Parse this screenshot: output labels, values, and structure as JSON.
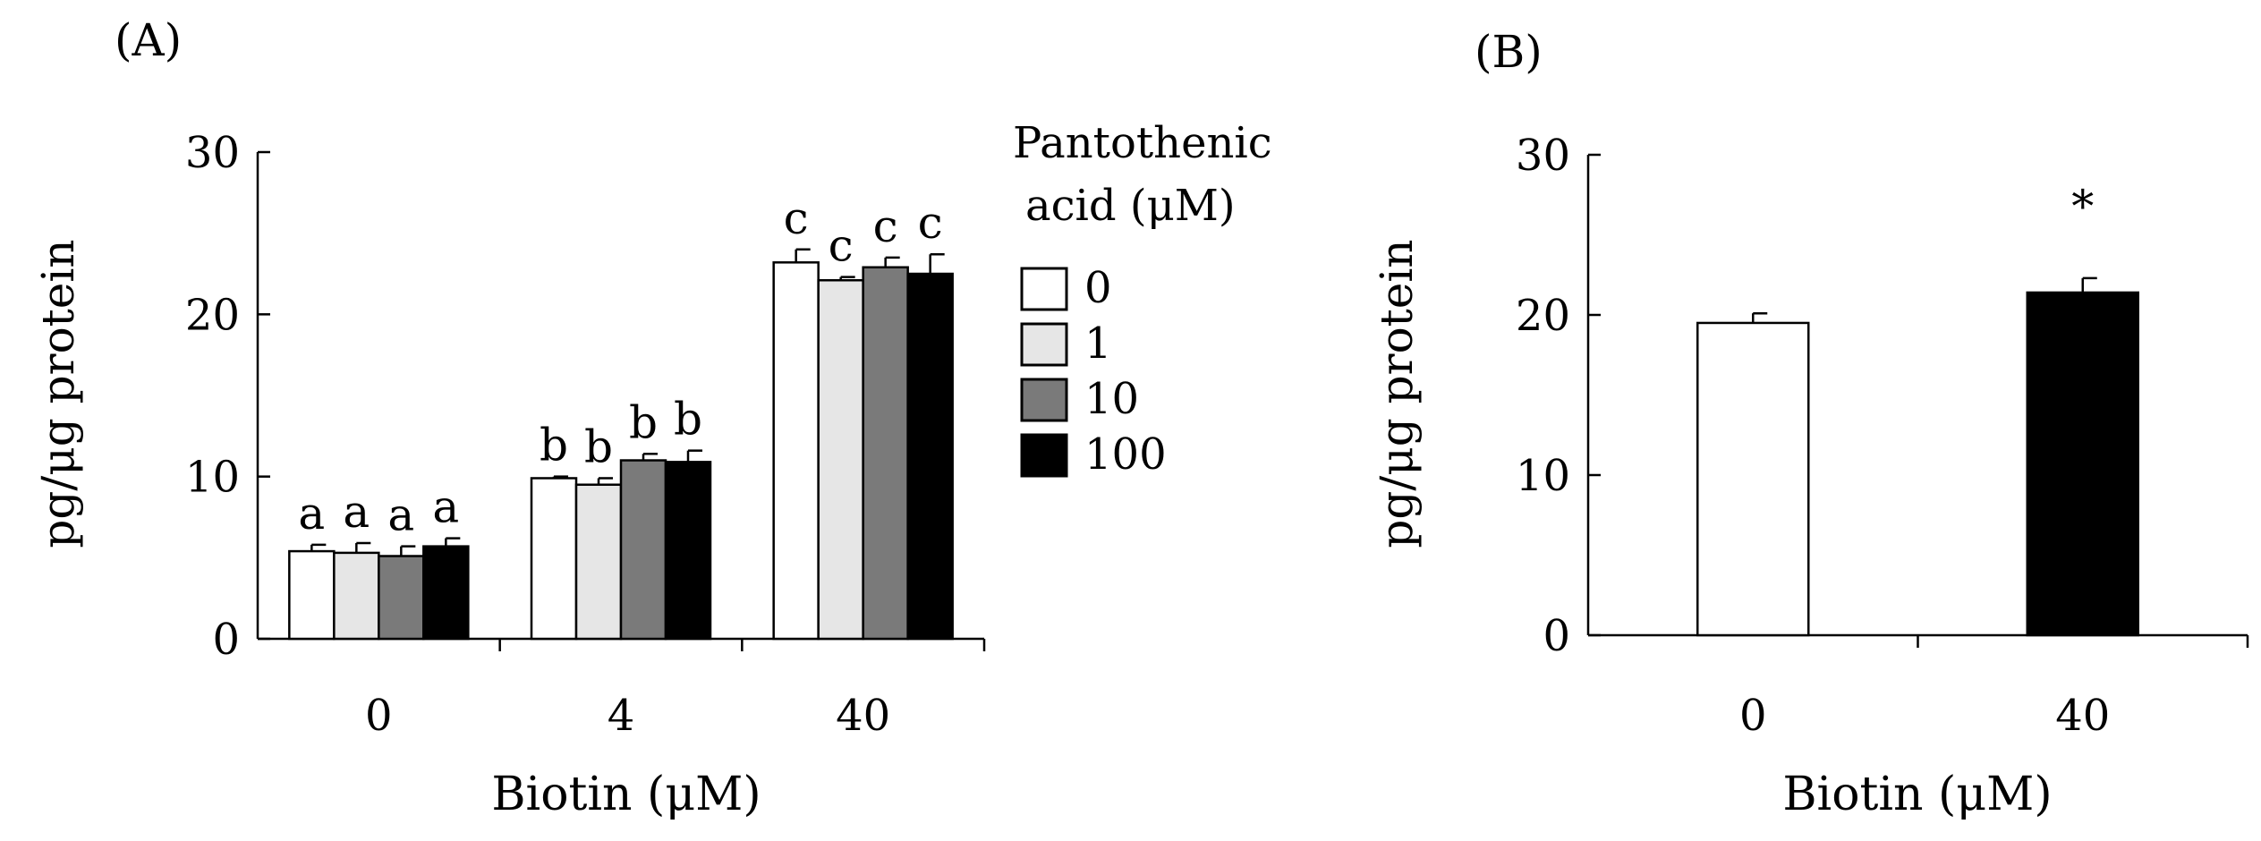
{
  "chart_data": [
    {
      "panel_label": "(A)",
      "type": "bar",
      "categories": [
        "0",
        "4",
        "40"
      ],
      "xlabel": "Biotin (μM)",
      "ylabel": "pg/μg protein",
      "ylim": [
        0,
        30
      ],
      "yticks": [
        "0",
        "10",
        "20",
        "30"
      ],
      "grid": false,
      "legend_title": [
        "Pantothenic",
        "acid (μM)"
      ],
      "legend_position": "right",
      "series": [
        {
          "name": "0",
          "color": "#ffffff",
          "values": [
            5.4,
            9.9,
            23.2
          ],
          "errors": [
            0.4,
            0.1,
            0.8
          ],
          "letters": [
            "a",
            "b",
            "c"
          ]
        },
        {
          "name": "1",
          "color": "#e6e6e6",
          "values": [
            5.3,
            9.5,
            22.1
          ],
          "errors": [
            0.6,
            0.4,
            0.2
          ],
          "letters": [
            "a",
            "b",
            "c"
          ]
        },
        {
          "name": "10",
          "color": "#7a7a7a",
          "values": [
            5.1,
            11.0,
            22.9
          ],
          "errors": [
            0.6,
            0.4,
            0.6
          ],
          "letters": [
            "a",
            "b",
            "c"
          ]
        },
        {
          "name": "100",
          "color": "#000000",
          "values": [
            5.7,
            10.9,
            22.5
          ],
          "errors": [
            0.5,
            0.7,
            1.2
          ],
          "letters": [
            "a",
            "b",
            "c"
          ]
        }
      ]
    },
    {
      "panel_label": "(B)",
      "type": "bar",
      "categories": [
        "0",
        "40"
      ],
      "xlabel": "Biotin (μM)",
      "ylabel": "pg/μg protein",
      "ylim": [
        0,
        30
      ],
      "yticks": [
        "0",
        "10",
        "20",
        "30"
      ],
      "grid": false,
      "values": [
        19.5,
        21.4
      ],
      "errors": [
        0.6,
        0.9
      ],
      "colors": [
        "#ffffff",
        "#000000"
      ],
      "annotations": [
        "",
        "*"
      ]
    }
  ]
}
